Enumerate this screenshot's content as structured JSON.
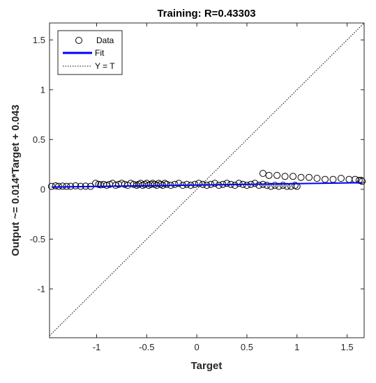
{
  "chart_data": {
    "type": "scatter",
    "title": "Training: R=0.43303",
    "xlabel": "Target",
    "ylabel": "Output ~= 0.014*Target + 0.043",
    "xlim": [
      -1.47,
      1.67
    ],
    "ylim": [
      -1.49,
      1.67
    ],
    "xticks": [
      -1,
      -0.5,
      0,
      0.5,
      1,
      1.5
    ],
    "xtick_labels": [
      "-1",
      "-0.5",
      "0",
      "0.5",
      "1",
      "1.5"
    ],
    "yticks": [
      -1,
      -0.5,
      0,
      0.5,
      1,
      1.5
    ],
    "ytick_labels": [
      "-1",
      "-0.5",
      "0",
      "0.5",
      "1",
      "1.5"
    ],
    "grid": false,
    "legend_position": "top-left",
    "legend": [
      "Data",
      "Fit",
      "Y = T"
    ],
    "colors": {
      "data": "#000000",
      "fit": "#0000ff",
      "identity": "#000000"
    },
    "fit": {
      "slope": 0.014,
      "intercept": 0.043
    },
    "series": [
      {
        "name": "Data",
        "x": [
          -1.45,
          -1.41,
          -1.38,
          -1.34,
          -1.3,
          -1.26,
          -1.21,
          -1.16,
          -1.11,
          -1.06,
          -1.01,
          -0.98,
          -0.96,
          -0.93,
          -0.9,
          -0.87,
          -0.84,
          -0.81,
          -0.78,
          -0.75,
          -0.72,
          -0.69,
          -0.66,
          -0.63,
          -0.6,
          -0.58,
          -0.56,
          -0.54,
          -0.52,
          -0.5,
          -0.48,
          -0.46,
          -0.44,
          -0.42,
          -0.4,
          -0.38,
          -0.36,
          -0.34,
          -0.32,
          -0.3,
          -0.26,
          -0.22,
          -0.18,
          -0.14,
          -0.1,
          -0.06,
          -0.02,
          0.02,
          0.06,
          0.1,
          0.14,
          0.18,
          0.22,
          0.26,
          0.3,
          0.34,
          0.38,
          0.42,
          0.46,
          0.5,
          0.54,
          0.58,
          0.62,
          0.66,
          0.7,
          0.74,
          0.78,
          0.82,
          0.86,
          0.9,
          0.94,
          0.98,
          1.0,
          0.66,
          0.72,
          0.8,
          0.88,
          0.96,
          1.04,
          1.12,
          1.2,
          1.28,
          1.36,
          1.44,
          1.52,
          1.58,
          1.62,
          1.64,
          1.65
        ],
        "y": [
          0.03,
          0.035,
          0.03,
          0.032,
          0.03,
          0.031,
          0.035,
          0.03,
          0.032,
          0.03,
          0.06,
          0.05,
          0.045,
          0.05,
          0.04,
          0.05,
          0.06,
          0.04,
          0.05,
          0.06,
          0.05,
          0.04,
          0.06,
          0.05,
          0.04,
          0.05,
          0.06,
          0.04,
          0.05,
          0.06,
          0.04,
          0.05,
          0.06,
          0.05,
          0.04,
          0.06,
          0.05,
          0.04,
          0.06,
          0.05,
          0.04,
          0.05,
          0.06,
          0.04,
          0.05,
          0.04,
          0.05,
          0.06,
          0.05,
          0.04,
          0.05,
          0.06,
          0.04,
          0.05,
          0.06,
          0.05,
          0.04,
          0.06,
          0.05,
          0.04,
          0.05,
          0.06,
          0.04,
          0.05,
          0.04,
          0.03,
          0.04,
          0.03,
          0.04,
          0.03,
          0.03,
          0.04,
          0.03,
          0.16,
          0.14,
          0.14,
          0.13,
          0.13,
          0.12,
          0.12,
          0.11,
          0.1,
          0.1,
          0.11,
          0.1,
          0.1,
          0.09,
          0.09,
          0.08
        ]
      }
    ]
  }
}
